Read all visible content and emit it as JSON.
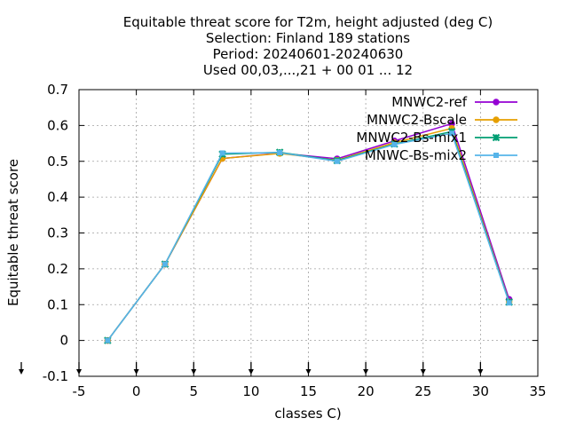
{
  "chart_data": {
    "type": "line",
    "title_lines": [
      "Equitable threat score  for T2m, height adjusted (deg C)",
      "Selection: Finland    189 stations",
      "Period: 20240601-20240630",
      "Used 00,03,...,21 + 00 01 ... 12"
    ],
    "xlabel": "classes C)",
    "ylabel": "Equitable threat score",
    "xlim": [
      -5,
      35
    ],
    "ylim": [
      -0.1,
      0.7
    ],
    "xticks": [
      -5,
      0,
      5,
      10,
      15,
      20,
      25,
      30,
      35
    ],
    "xtick_labels": [
      "-5",
      "0",
      "5",
      "10",
      "15",
      "20",
      "25",
      "30",
      "35"
    ],
    "yticks": [
      -0.1,
      0,
      0.1,
      0.2,
      0.3,
      0.4,
      0.5,
      0.6,
      0.7
    ],
    "ytick_labels": [
      "-0.1",
      "0",
      "0.1",
      "0.2",
      "0.3",
      "0.4",
      "0.5",
      "0.6",
      "0.7"
    ],
    "grid": true,
    "legend_position": "top-right",
    "arrow_markers_x": [
      -5,
      0,
      5,
      10,
      15,
      20,
      25,
      30
    ],
    "series": [
      {
        "name": "MNWC2-ref",
        "color": "#9400d3",
        "marker": "circle",
        "x": [
          -2.5,
          2.5,
          7.5,
          12.5,
          17.5,
          22.5,
          27.5,
          32.5
        ],
        "y": [
          0.0,
          0.213,
          0.508,
          0.523,
          0.507,
          0.557,
          0.605,
          0.115
        ]
      },
      {
        "name": "MNWC2-Bscale",
        "color": "#e69f00",
        "marker": "circle",
        "x": [
          -2.5,
          2.5,
          7.5,
          12.5,
          17.5,
          22.5,
          27.5,
          32.5
        ],
        "y": [
          0.0,
          0.213,
          0.508,
          0.522,
          0.503,
          0.552,
          0.592,
          0.108
        ]
      },
      {
        "name": "MNWC2-Bs-mix1",
        "color": "#009e73",
        "marker": "x",
        "x": [
          -2.5,
          2.5,
          7.5,
          12.5,
          17.5,
          22.5,
          27.5,
          32.5
        ],
        "y": [
          0.0,
          0.213,
          0.52,
          0.525,
          0.502,
          0.548,
          0.583,
          0.107
        ]
      },
      {
        "name": "MNWC-Bs-mix2",
        "color": "#56b4e9",
        "marker": "square",
        "x": [
          -2.5,
          2.5,
          7.5,
          12.5,
          17.5,
          22.5,
          27.5,
          32.5
        ],
        "y": [
          0.0,
          0.213,
          0.523,
          0.524,
          0.5,
          0.547,
          0.578,
          0.105
        ]
      }
    ]
  }
}
